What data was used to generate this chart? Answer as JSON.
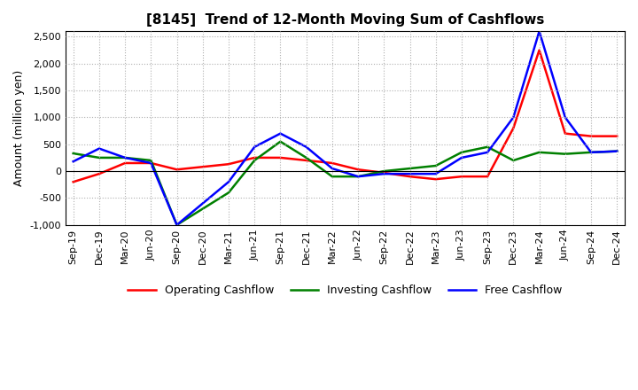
{
  "title": "[8145]  Trend of 12-Month Moving Sum of Cashflows",
  "ylabel": "Amount (million yen)",
  "x_labels": [
    "Sep-19",
    "Dec-19",
    "Mar-20",
    "Jun-20",
    "Sep-20",
    "Dec-20",
    "Mar-21",
    "Jun-21",
    "Sep-21",
    "Dec-21",
    "Mar-22",
    "Jun-22",
    "Sep-22",
    "Dec-22",
    "Mar-23",
    "Jun-23",
    "Sep-23",
    "Dec-23",
    "Mar-24",
    "Jun-24",
    "Sep-24",
    "Dec-24"
  ],
  "operating_cashflow": [
    -200,
    -50,
    150,
    150,
    30,
    80,
    130,
    250,
    250,
    200,
    150,
    30,
    -30,
    -100,
    -150,
    -100,
    -100,
    800,
    2250,
    700,
    650,
    650
  ],
  "investing_cashflow": [
    330,
    250,
    250,
    200,
    -1000,
    -700,
    -400,
    200,
    550,
    250,
    -100,
    -100,
    0,
    50,
    100,
    350,
    450,
    200,
    350,
    320,
    350,
    370
  ],
  "free_cashflow": [
    180,
    420,
    250,
    150,
    -1000,
    -600,
    -200,
    450,
    700,
    450,
    50,
    -100,
    -50,
    -50,
    -50,
    250,
    350,
    1000,
    2600,
    1000,
    350,
    370
  ],
  "operating_color": "#ff0000",
  "investing_color": "#008000",
  "free_color": "#0000ff",
  "ylim": [
    -1000,
    2500
  ],
  "yticks": [
    -1000,
    -500,
    0,
    500,
    1000,
    1500,
    2000,
    2500
  ],
  "background_color": "#ffffff",
  "grid_color": "#b0b0b0",
  "title_fontsize": 11,
  "axis_fontsize": 8,
  "ylabel_fontsize": 9,
  "legend_fontsize": 9,
  "linewidth": 1.8
}
